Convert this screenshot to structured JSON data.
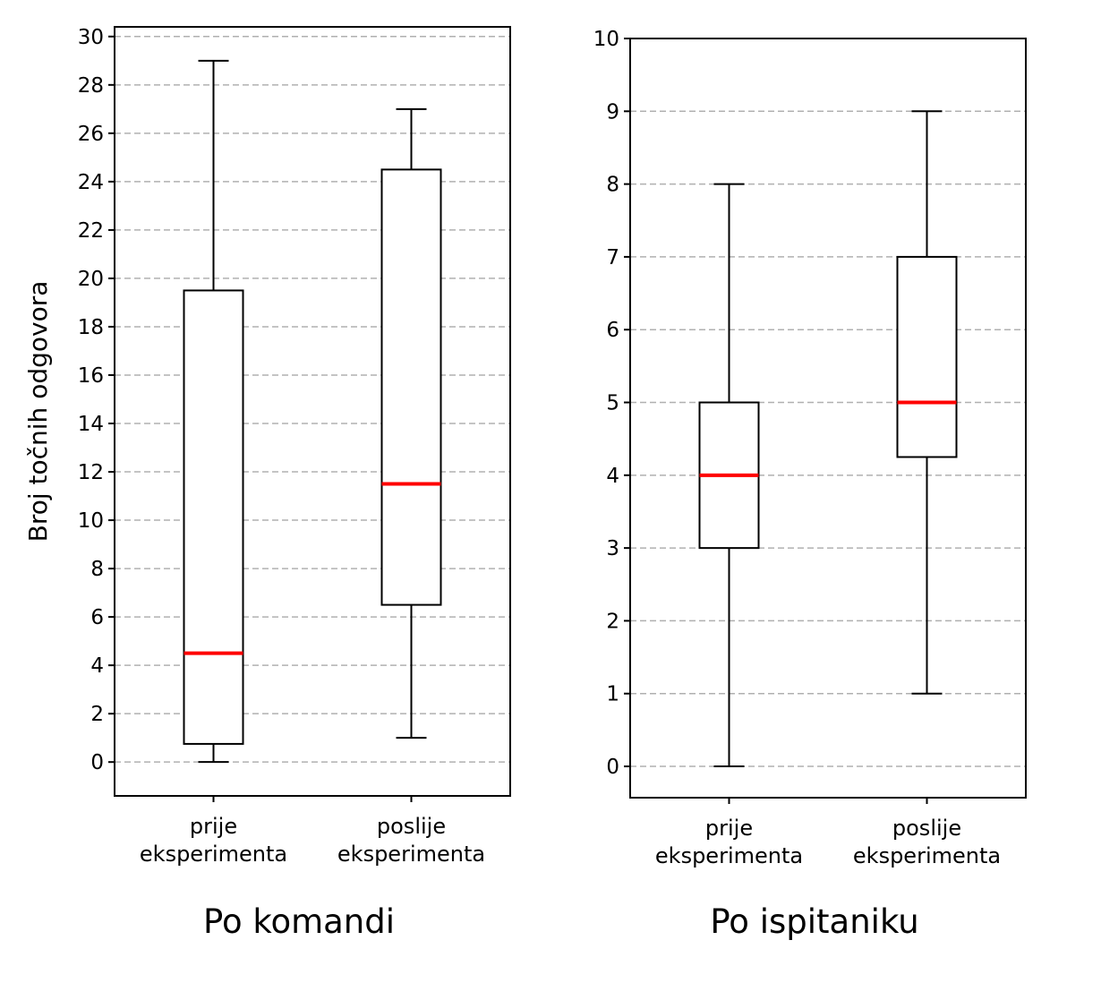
{
  "chart_data": [
    {
      "type": "box",
      "ylabel": "Broj točnih odgovora",
      "caption": "Po komandi",
      "categories": [
        "prije\neksperimenta",
        "poslije\neksperimenta"
      ],
      "boxes": [
        {
          "whislo": 0,
          "q1": 0.75,
          "med": 4.5,
          "q3": 19.5,
          "whishi": 29
        },
        {
          "whislo": 1,
          "q1": 6.5,
          "med": 11.5,
          "q3": 24.5,
          "whishi": 27
        }
      ],
      "ylim": [
        -1.4,
        30.4
      ],
      "yticks": [
        0,
        2,
        4,
        6,
        8,
        10,
        12,
        14,
        16,
        18,
        20,
        22,
        24,
        26,
        28,
        30
      ],
      "grid": "y-dashed",
      "colors": {
        "median": "#ff0000",
        "grid": "#b0b0b0",
        "box": "#000000"
      }
    },
    {
      "type": "box",
      "ylabel": "",
      "caption": "Po ispitaniku",
      "categories": [
        "prije\neksperimenta",
        "poslije\neksperimenta"
      ],
      "boxes": [
        {
          "whislo": 0,
          "q1": 3,
          "med": 4,
          "q3": 5,
          "whishi": 8
        },
        {
          "whislo": 1,
          "q1": 4.25,
          "med": 5,
          "q3": 7,
          "whishi": 9
        }
      ],
      "ylim": [
        -0.43,
        10
      ],
      "yticks": [
        0,
        1,
        2,
        3,
        4,
        5,
        6,
        7,
        8,
        9,
        10
      ],
      "grid": "y-dashed",
      "colors": {
        "median": "#ff0000",
        "grid": "#b0b0b0",
        "box": "#000000"
      }
    }
  ]
}
